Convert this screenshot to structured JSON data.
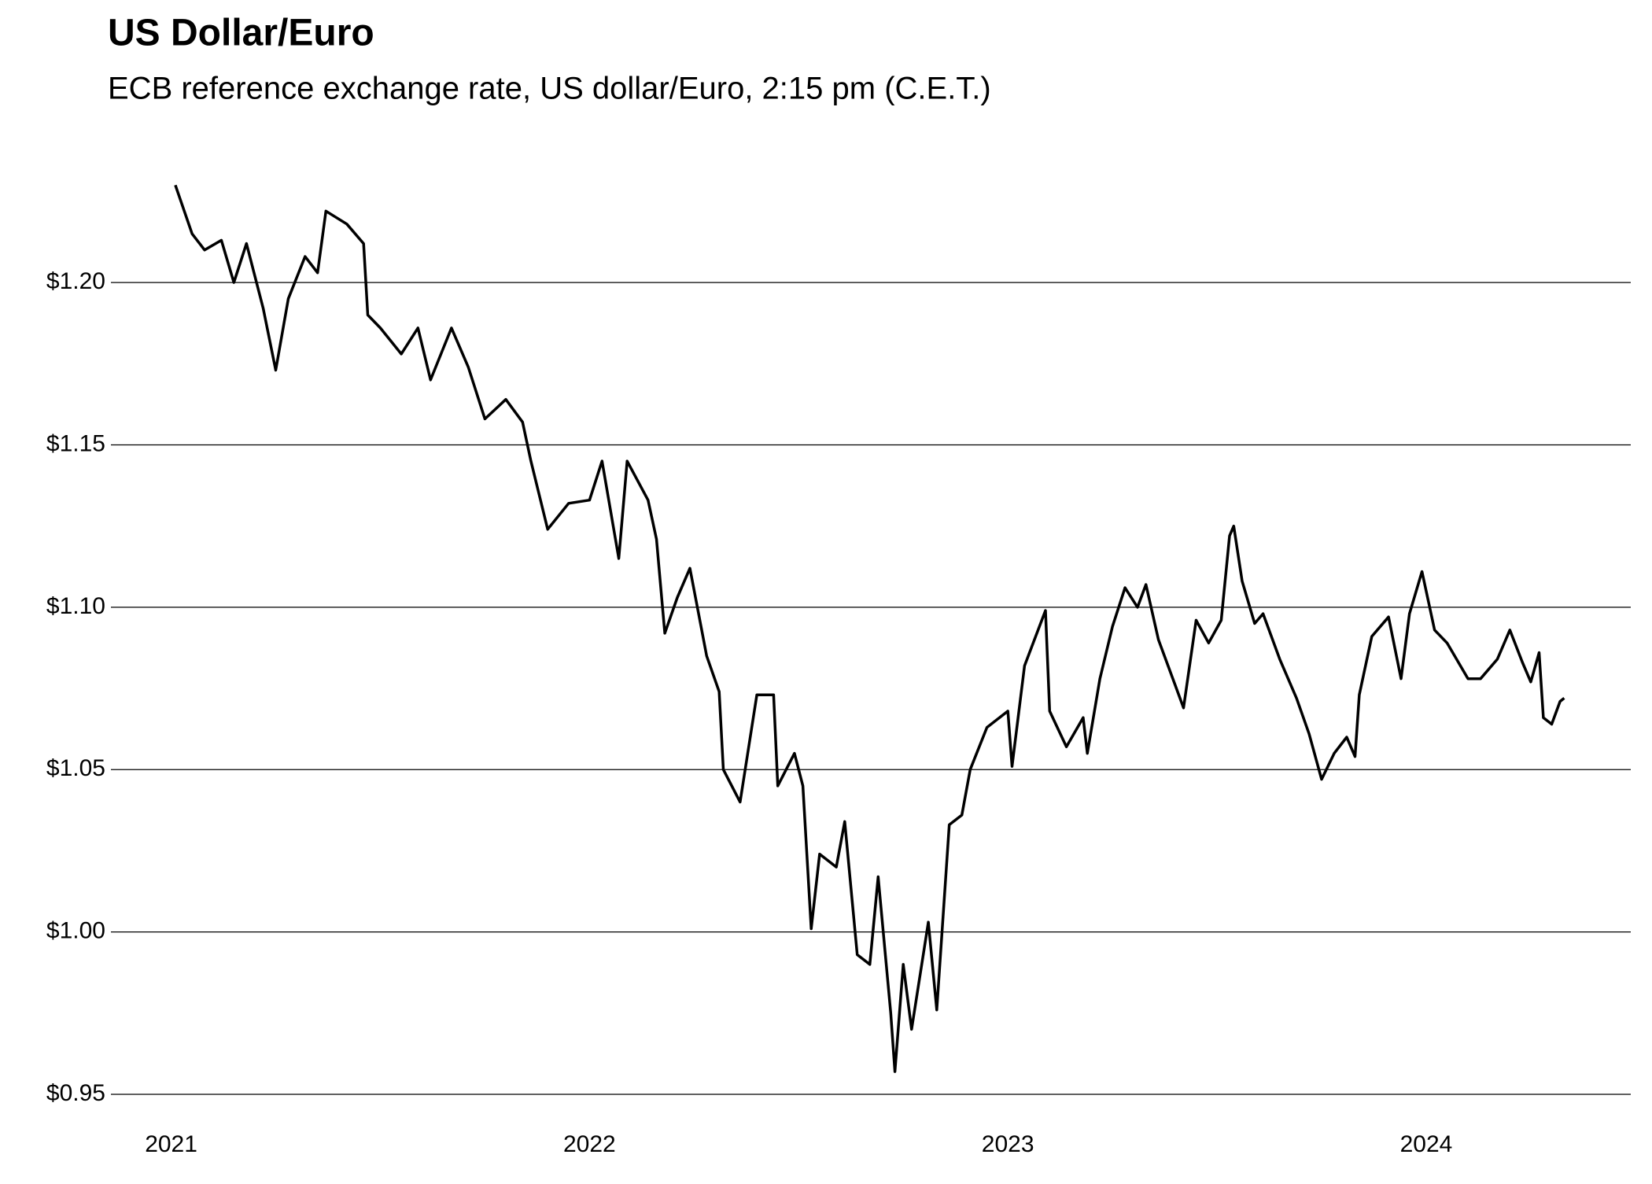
{
  "chart_data": {
    "type": "line",
    "title": "US Dollar/Euro",
    "subtitle": "ECB reference exchange rate, US dollar/Euro, 2:15 pm (C.E.T.)",
    "color": "#000000",
    "grid": true,
    "x": [
      2021.01,
      2021.05,
      2021.08,
      2021.12,
      2021.15,
      2021.18,
      2021.22,
      2021.25,
      2021.28,
      2021.32,
      2021.35,
      2021.37,
      2021.42,
      2021.46,
      2021.47,
      2021.5,
      2021.55,
      2021.59,
      2021.62,
      2021.67,
      2021.71,
      2021.75,
      2021.8,
      2021.84,
      2021.86,
      2021.9,
      2021.95,
      2022.0,
      2022.03,
      2022.07,
      2022.09,
      2022.14,
      2022.16,
      2022.18,
      2022.21,
      2022.24,
      2022.28,
      2022.31,
      2022.32,
      2022.36,
      2022.4,
      2022.44,
      2022.45,
      2022.49,
      2022.51,
      2022.53,
      2022.55,
      2022.59,
      2022.61,
      2022.64,
      2022.67,
      2022.69,
      2022.72,
      2022.73,
      2022.75,
      2022.77,
      2022.81,
      2022.83,
      2022.86,
      2022.89,
      2022.91,
      2022.95,
      2023.0,
      2023.01,
      2023.04,
      2023.09,
      2023.1,
      2023.14,
      2023.18,
      2023.19,
      2023.22,
      2023.25,
      2023.28,
      2023.31,
      2023.33,
      2023.36,
      2023.4,
      2023.42,
      2023.45,
      2023.48,
      2023.51,
      2023.53,
      2023.54,
      2023.56,
      2023.59,
      2023.61,
      2023.65,
      2023.69,
      2023.72,
      2023.75,
      2023.78,
      2023.81,
      2023.83,
      2023.84,
      2023.87,
      2023.91,
      2023.94,
      2023.96,
      2023.99,
      2024.02,
      2024.05,
      2024.1,
      2024.13,
      2024.17,
      2024.2,
      2024.23,
      2024.25,
      2024.27,
      2024.28,
      2024.3,
      2024.32,
      2024.33
    ],
    "values": [
      1.23,
      1.215,
      1.21,
      1.213,
      1.2,
      1.212,
      1.192,
      1.173,
      1.195,
      1.208,
      1.203,
      1.222,
      1.218,
      1.212,
      1.19,
      1.186,
      1.178,
      1.186,
      1.17,
      1.186,
      1.174,
      1.158,
      1.164,
      1.157,
      1.145,
      1.124,
      1.132,
      1.133,
      1.145,
      1.115,
      1.145,
      1.133,
      1.121,
      1.092,
      1.103,
      1.112,
      1.085,
      1.074,
      1.05,
      1.04,
      1.073,
      1.073,
      1.045,
      1.055,
      1.045,
      1.001,
      1.024,
      1.02,
      1.034,
      0.993,
      0.99,
      1.017,
      0.975,
      0.957,
      0.99,
      0.97,
      1.003,
      0.976,
      1.033,
      1.036,
      1.05,
      1.063,
      1.068,
      1.051,
      1.082,
      1.099,
      1.068,
      1.057,
      1.066,
      1.055,
      1.078,
      1.094,
      1.106,
      1.1,
      1.107,
      1.09,
      1.076,
      1.069,
      1.096,
      1.089,
      1.096,
      1.122,
      1.125,
      1.108,
      1.095,
      1.098,
      1.084,
      1.072,
      1.061,
      1.047,
      1.055,
      1.06,
      1.054,
      1.073,
      1.091,
      1.097,
      1.078,
      1.098,
      1.111,
      1.093,
      1.089,
      1.078,
      1.078,
      1.084,
      1.093,
      1.083,
      1.077,
      1.086,
      1.066,
      1.064,
      1.071,
      1.072
    ],
    "xlim": [
      2020.856,
      2024.489
    ],
    "xticks": [
      2021,
      2022,
      2023,
      2024
    ],
    "ylim": [
      0.95,
      1.24
    ],
    "yticks": [
      {
        "value": 0.95,
        "label": "$0.95"
      },
      {
        "value": 1.0,
        "label": "$1.00"
      },
      {
        "value": 1.05,
        "label": "$1.05"
      },
      {
        "value": 1.1,
        "label": "$1.10"
      },
      {
        "value": 1.15,
        "label": "$1.15"
      },
      {
        "value": 1.2,
        "label": "$1.20"
      }
    ]
  }
}
